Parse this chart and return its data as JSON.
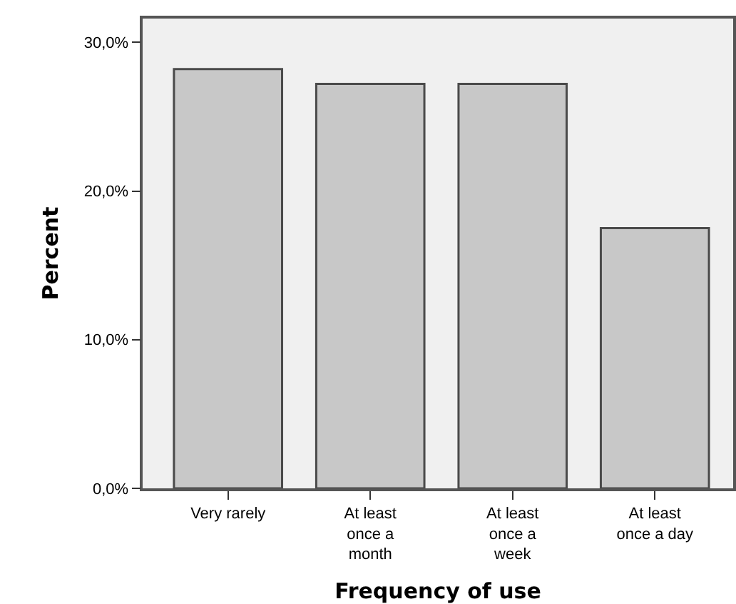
{
  "chart_data": {
    "type": "bar",
    "xlabel": "Frequency of use",
    "ylabel": "Percent",
    "categories": [
      "Very rarely",
      "At least\nonce a\nmonth",
      "At least\nonce a\nweek",
      "At least\nonce a day"
    ],
    "values": [
      28.2,
      27.2,
      27.2,
      17.5
    ],
    "color": "#c8c8c8",
    "ylim": [
      0,
      31.6
    ],
    "yticks": [
      {
        "value": 0,
        "label": "0,0%"
      },
      {
        "value": 10,
        "label": "10,0%"
      },
      {
        "value": 20,
        "label": "20,0%"
      },
      {
        "value": 30,
        "label": "30,0%"
      }
    ],
    "grid": false
  }
}
